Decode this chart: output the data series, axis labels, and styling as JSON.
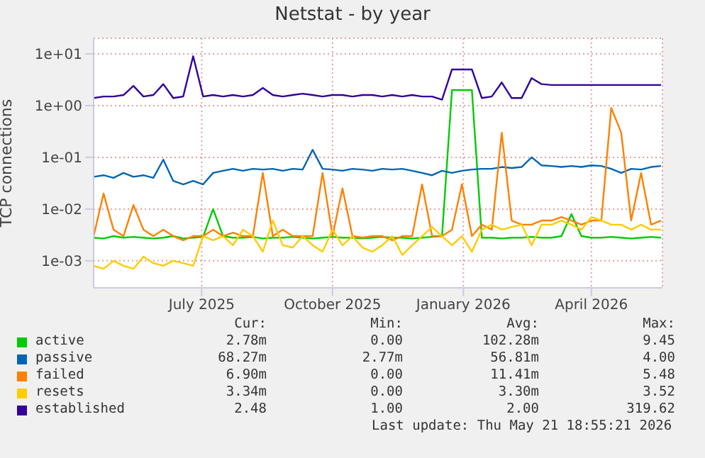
{
  "chart_data": {
    "type": "line",
    "title": "Netstat - by year",
    "ylabel": "TCP connections",
    "x": [
      "2025-04-16",
      "2025-04-23",
      "2025-04-30",
      "2025-05-07",
      "2025-05-14",
      "2025-05-21",
      "2025-05-28",
      "2025-06-04",
      "2025-06-11",
      "2025-06-18",
      "2025-06-25",
      "2025-07-02",
      "2025-07-09",
      "2025-07-16",
      "2025-07-23",
      "2025-07-30",
      "2025-08-06",
      "2025-08-13",
      "2025-08-20",
      "2025-08-27",
      "2025-09-03",
      "2025-09-10",
      "2025-09-17",
      "2025-09-24",
      "2025-10-01",
      "2025-10-08",
      "2025-10-15",
      "2025-10-22",
      "2025-10-29",
      "2025-11-05",
      "2025-11-12",
      "2025-11-19",
      "2025-11-26",
      "2025-12-03",
      "2025-12-10",
      "2025-12-17",
      "2025-12-24",
      "2025-12-31",
      "2026-01-07",
      "2026-01-14",
      "2026-01-21",
      "2026-01-28",
      "2026-02-04",
      "2026-02-11",
      "2026-02-18",
      "2026-02-25",
      "2026-03-04",
      "2026-03-11",
      "2026-03-18",
      "2026-03-25",
      "2026-04-01",
      "2026-04-08",
      "2026-04-15",
      "2026-04-22",
      "2026-04-29",
      "2026-05-06",
      "2026-05-13",
      "2026-05-20"
    ],
    "series": [
      {
        "name": "active",
        "color": "#00cc00",
        "values": [
          0.0028,
          0.0027,
          0.003,
          0.0028,
          0.0029,
          0.0028,
          0.0027,
          0.0028,
          0.003,
          0.0027,
          0.0028,
          0.0029,
          0.01,
          0.003,
          0.0028,
          0.0028,
          0.0029,
          0.0027,
          0.0028,
          0.0028,
          0.0029,
          0.0028,
          0.0027,
          0.0028,
          0.0029,
          0.0028,
          0.0028,
          0.0027,
          0.0028,
          0.0029,
          0.0028,
          0.0028,
          0.0027,
          0.0028,
          0.0029,
          0.003,
          2.0,
          2.0,
          2.0,
          0.0028,
          0.0028,
          0.0027,
          0.0028,
          0.0028,
          0.0029,
          0.0028,
          0.0028,
          0.003,
          0.008,
          0.003,
          0.0028,
          0.0028,
          0.0029,
          0.0028,
          0.0027,
          0.0028,
          0.0029,
          0.0028
        ]
      },
      {
        "name": "passive",
        "color": "#0066b3",
        "values": [
          0.042,
          0.045,
          0.04,
          0.05,
          0.042,
          0.045,
          0.04,
          0.09,
          0.035,
          0.03,
          0.035,
          0.03,
          0.05,
          0.055,
          0.06,
          0.055,
          0.06,
          0.058,
          0.06,
          0.055,
          0.06,
          0.058,
          0.14,
          0.06,
          0.058,
          0.055,
          0.06,
          0.058,
          0.055,
          0.06,
          0.058,
          0.06,
          0.055,
          0.05,
          0.045,
          0.055,
          0.05,
          0.055,
          0.058,
          0.06,
          0.06,
          0.065,
          0.062,
          0.065,
          0.1,
          0.07,
          0.068,
          0.065,
          0.068,
          0.065,
          0.07,
          0.068,
          0.06,
          0.05,
          0.06,
          0.058,
          0.065,
          0.068
        ]
      },
      {
        "name": "failed",
        "color": "#ff8000",
        "values": [
          0.003,
          0.02,
          0.004,
          0.003,
          0.012,
          0.004,
          0.003,
          0.004,
          0.003,
          0.0025,
          0.003,
          0.003,
          0.004,
          0.003,
          0.0035,
          0.003,
          0.003,
          0.05,
          0.003,
          0.004,
          0.003,
          0.003,
          0.003,
          0.05,
          0.003,
          0.025,
          0.003,
          0.0028,
          0.003,
          0.003,
          0.0025,
          0.003,
          0.003,
          0.03,
          0.003,
          0.003,
          0.004,
          0.03,
          0.003,
          0.005,
          0.004,
          0.3,
          0.006,
          0.005,
          0.005,
          0.006,
          0.006,
          0.007,
          0.006,
          0.005,
          0.006,
          0.006,
          0.9,
          0.3,
          0.006,
          0.05,
          0.005,
          0.006
        ]
      },
      {
        "name": "resets",
        "color": "#ffcc00",
        "values": [
          0.0008,
          0.0007,
          0.001,
          0.0008,
          0.0007,
          0.0012,
          0.0009,
          0.0008,
          0.001,
          0.0009,
          0.0008,
          0.003,
          0.0025,
          0.003,
          0.002,
          0.004,
          0.003,
          0.0015,
          0.006,
          0.002,
          0.0018,
          0.003,
          0.002,
          0.0015,
          0.004,
          0.002,
          0.003,
          0.0018,
          0.0015,
          0.002,
          0.003,
          0.0013,
          0.002,
          0.003,
          0.0045,
          0.003,
          0.002,
          0.003,
          0.0015,
          0.004,
          0.005,
          0.004,
          0.0045,
          0.005,
          0.002,
          0.005,
          0.005,
          0.006,
          0.005,
          0.004,
          0.007,
          0.006,
          0.005,
          0.005,
          0.004,
          0.005,
          0.004,
          0.004
        ]
      },
      {
        "name": "established",
        "color": "#330099",
        "values": [
          1.4,
          1.5,
          1.5,
          1.6,
          2.4,
          1.5,
          1.6,
          2.6,
          1.4,
          1.5,
          9.0,
          1.5,
          1.6,
          1.5,
          1.6,
          1.5,
          1.6,
          2.2,
          1.6,
          1.5,
          1.6,
          1.7,
          1.6,
          1.5,
          1.6,
          1.6,
          1.5,
          1.6,
          1.6,
          1.5,
          1.6,
          1.5,
          1.6,
          1.5,
          1.5,
          1.3,
          5.0,
          5.0,
          5.0,
          1.4,
          1.5,
          2.8,
          1.4,
          1.4,
          3.4,
          2.6,
          2.5,
          2.5,
          2.5,
          2.5,
          2.5,
          2.5,
          2.5,
          2.5,
          2.5,
          2.5,
          2.5,
          2.5
        ]
      }
    ],
    "xlim": [
      "2025-04-16",
      "2026-05-21"
    ],
    "xticks": [
      {
        "value": "2025-07-01",
        "label": "July 2025"
      },
      {
        "value": "2025-10-01",
        "label": "October 2025"
      },
      {
        "value": "2026-01-01",
        "label": "January 2026"
      },
      {
        "value": "2026-04-01",
        "label": "April 2026"
      }
    ],
    "ylim": [
      0.0003,
      20
    ],
    "yticks": [
      {
        "value": 0.001,
        "label": "1e-03"
      },
      {
        "value": 0.01,
        "label": "1e-02"
      },
      {
        "value": 0.1,
        "label": "1e-01"
      },
      {
        "value": 1,
        "label": "1e+00"
      },
      {
        "value": 10,
        "label": "1e+01"
      }
    ],
    "log": "y",
    "grid": true,
    "legend": "bottom",
    "marker": "none",
    "line_style": "solid",
    "annotations": [
      "Cur:",
      "Min:",
      "Avg:",
      "Max:",
      "2.78m",
      "0.00",
      "102.28m",
      "9.45",
      "68.27m",
      "2.77m",
      "56.81m",
      "4.00",
      "6.90m",
      "0.00",
      "11.41m",
      "5.48",
      "3.34m",
      "0.00",
      "3.30m",
      "3.52",
      "2.48",
      "1.00",
      "2.00",
      "319.62",
      "Last update: Thu May 21 18:55:21 2026"
    ]
  }
}
